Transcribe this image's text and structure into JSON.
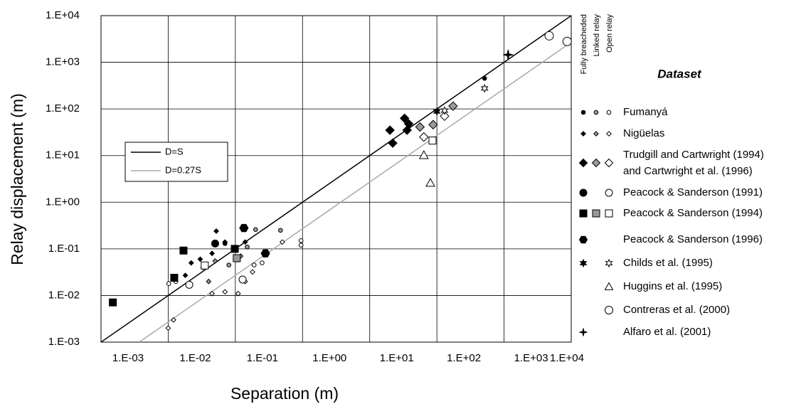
{
  "chart_data": {
    "type": "scatter",
    "log_x": true,
    "log_y": true,
    "grid": true,
    "x_label": "Separation (m)",
    "y_label": "Relay displacement (m)",
    "xlim": [
      0.001,
      10000
    ],
    "ylim": [
      0.001,
      10000
    ],
    "xticks": [
      {
        "value": 0.001,
        "label": "1.E-03"
      },
      {
        "value": 0.01,
        "label": "1.E-02"
      },
      {
        "value": 0.1,
        "label": "1.E-01"
      },
      {
        "value": 1,
        "label": "1.E+00"
      },
      {
        "value": 10,
        "label": "1.E+01"
      },
      {
        "value": 100,
        "label": "1.E+02"
      },
      {
        "value": 1000,
        "label": "1.E+03"
      },
      {
        "value": 10000,
        "label": "1.E+04"
      }
    ],
    "yticks": [
      {
        "value": 0.001,
        "label": "1.E-03"
      },
      {
        "value": 0.01,
        "label": "1.E-02"
      },
      {
        "value": 0.1,
        "label": "1.E-01"
      },
      {
        "value": 1,
        "label": "1.E+00"
      },
      {
        "value": 10,
        "label": "1.E+01"
      },
      {
        "value": 100,
        "label": "1.E+02"
      },
      {
        "value": 1000,
        "label": "1.E+03"
      },
      {
        "value": 10000,
        "label": "1.E+04"
      }
    ],
    "lines": [
      {
        "name": "D=S",
        "color": "#000000",
        "x": [
          0.001,
          10000
        ],
        "values": [
          0.001,
          10000
        ]
      },
      {
        "name": "D=0.27S",
        "color": "#aaaaaa",
        "x": [
          0.0037,
          10000
        ],
        "values": [
          0.001,
          2700
        ]
      }
    ],
    "legend_title": "Dataset",
    "columns": [
      {
        "label": "Fully breacheded",
        "color": "#000000"
      },
      {
        "label": "Linked relay",
        "color": "#999999"
      },
      {
        "label": "Open relay",
        "color": "#ffffff"
      }
    ],
    "datasets": [
      {
        "name": "Fumanyá",
        "marker": "circle",
        "size": 2.8,
        "groups": [
          {
            "color": "#000000",
            "x": [
              0.131,
              513,
              0.07
            ],
            "values": [
              0.275,
              452,
              0.13
            ]
          },
          {
            "color": "#999999",
            "x": [
              0.2,
              0.15,
              100,
              0.47,
              0.08
            ],
            "values": [
              0.26,
              0.11,
              90,
              0.25,
              0.045
            ]
          },
          {
            "color": "#ffffff",
            "x": [
              0.0102,
              0.95,
              0.95,
              0.19,
              0.013,
              0.25
            ],
            "values": [
              0.018,
              0.15,
              0.12,
              0.045,
              0.02,
              0.05
            ]
          }
        ]
      },
      {
        "name": "Nigüelas",
        "marker": "diamond",
        "size": 3.2,
        "groups": [
          {
            "color": "#000000",
            "x": [
              0.052,
              0.03,
              0.018,
              0.045,
              0.022,
              0.07,
              0.14,
              0.033
            ],
            "values": [
              0.24,
              0.06,
              0.027,
              0.08,
              0.05,
              0.14,
              0.14,
              0.04
            ]
          },
          {
            "color": "#999999",
            "x": [
              0.04,
              0.12,
              0.05
            ],
            "values": [
              0.02,
              0.07,
              0.055
            ]
          },
          {
            "color": "#ffffff",
            "x": [
              0.01,
              0.012,
              0.045,
              0.07,
              0.11,
              0.18,
              0.14,
              0.5
            ],
            "values": [
              0.002,
              0.003,
              0.011,
              0.012,
              0.011,
              0.032,
              0.02,
              0.14
            ]
          }
        ]
      },
      {
        "name": [
          "Trudgill and Cartwright (1994)",
          "and Cartwright et al. (1996)"
        ],
        "marker": "diamond",
        "size": 6,
        "groups": [
          {
            "color": "#000000",
            "x": [
              33,
              20,
              38,
              22,
              36
            ],
            "values": [
              63,
              35,
              48,
              18.5,
              35
            ]
          },
          {
            "color": "#999999",
            "x": [
              56,
              88,
              174
            ],
            "values": [
              41,
              46,
              115
            ]
          },
          {
            "color": "#ffffff",
            "x": [
              64,
              130
            ],
            "values": [
              25,
              70
            ]
          }
        ]
      },
      {
        "name": "Peacock & Sanderson (1991)",
        "marker": "circle",
        "size": 5,
        "groups": [
          {
            "color": "#000000",
            "x": [
              0.05
            ],
            "values": [
              0.13
            ]
          },
          {
            "color": "#ffffff",
            "x": [
              0.0206,
              0.128
            ],
            "values": [
              0.017,
              0.022
            ]
          }
        ]
      },
      {
        "name": "Peacock & Sanderson (1994)",
        "marker": "square",
        "size": 5,
        "groups": [
          {
            "color": "#000000",
            "x": [
              0.0015,
              0.0123,
              0.0169,
              0.098
            ],
            "values": [
              0.0071,
              0.024,
              0.092,
              0.1
            ]
          },
          {
            "color": "#999999",
            "x": [
              0.105
            ],
            "values": [
              0.063
            ]
          },
          {
            "color": "#ffffff",
            "x": [
              0.035,
              86
            ],
            "values": [
              0.044,
              21
            ]
          }
        ]
      },
      {
        "name": "Peacock & Sanderson (1996)",
        "marker": "hexagon",
        "size": 6,
        "groups": [
          {
            "color": "#000000",
            "x": [
              0.134,
              0.28
            ],
            "values": [
              0.28,
              0.08
            ]
          }
        ]
      },
      {
        "name": "Childs et al. (1995)",
        "marker": "star",
        "size": 5,
        "groups": [
          {
            "color": "#000000",
            "x": [
              100
            ],
            "values": [
              88
            ]
          },
          {
            "color": "#ffffff",
            "x": [
              130,
              513
            ],
            "values": [
              92,
              276
            ]
          }
        ]
      },
      {
        "name": "Huggins et al. (1995)",
        "marker": "triangle",
        "size": 6,
        "groups": [
          {
            "color": "#ffffff",
            "x": [
              64,
              80
            ],
            "values": [
              10.2,
              2.6
            ]
          }
        ]
      },
      {
        "name": "Contreras et al. (2000)",
        "marker": "circle",
        "size": 6,
        "groups": [
          {
            "color": "#ffffff",
            "x": [
              4700,
              8700
            ],
            "values": [
              3700,
              2800
            ]
          }
        ]
      },
      {
        "name": "Alfaro et al. (2001)",
        "marker": "star4",
        "size": 7,
        "groups": [
          {
            "color": "#000000",
            "x": [
              1150
            ],
            "values": [
              1450
            ]
          }
        ]
      }
    ]
  }
}
